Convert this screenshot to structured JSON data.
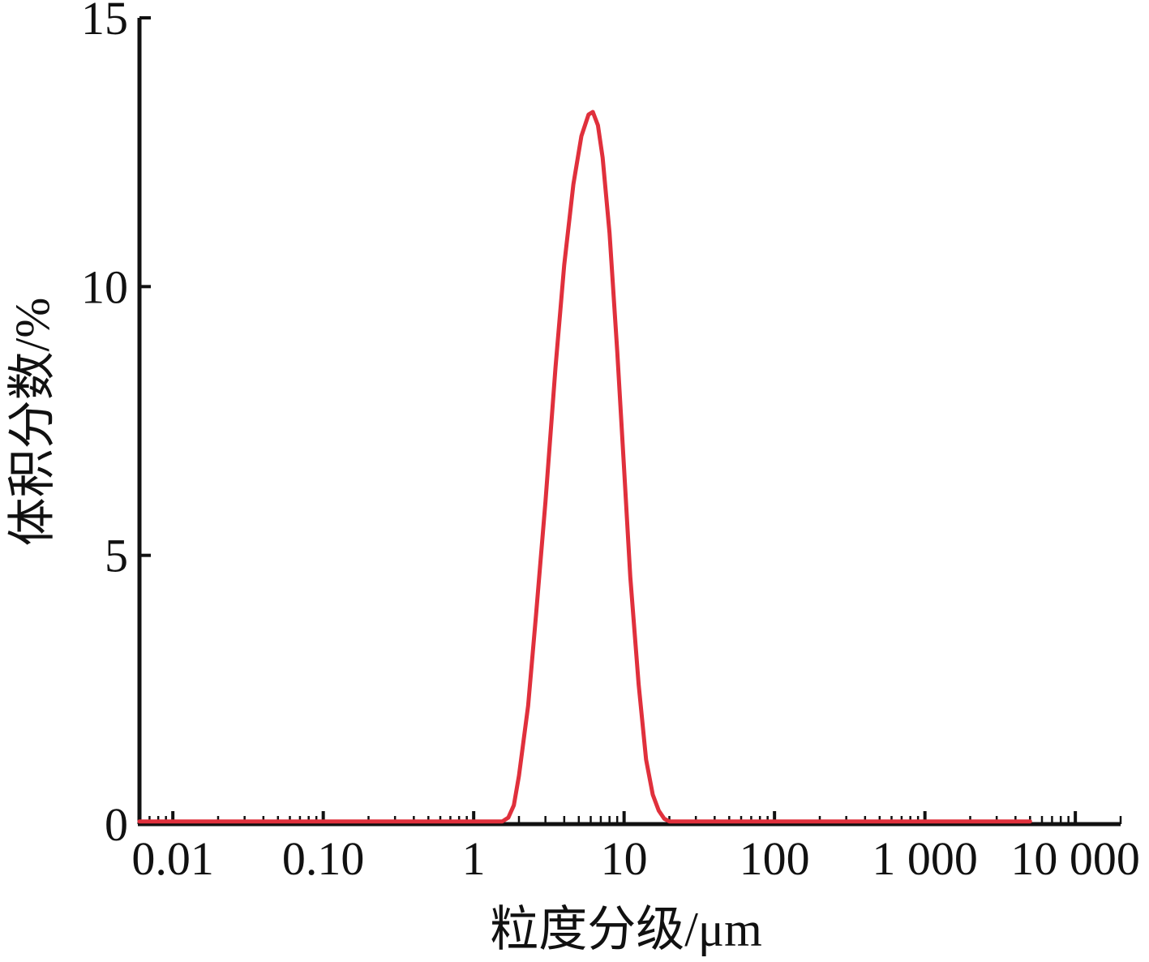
{
  "chart_data": {
    "type": "line",
    "xlabel": "粒度分级/μm",
    "ylabel": "体积分数/%",
    "x_scale": "log",
    "xlim": [
      0.006,
      20000
    ],
    "ylim": [
      0,
      15
    ],
    "x_ticks": [
      {
        "value": 0.01,
        "label": "0.01"
      },
      {
        "value": 0.1,
        "label": "0.10"
      },
      {
        "value": 1,
        "label": "1"
      },
      {
        "value": 10,
        "label": "10"
      },
      {
        "value": 100,
        "label": "100"
      },
      {
        "value": 1000,
        "label": "1 000"
      },
      {
        "value": 10000,
        "label": "10 000"
      }
    ],
    "y_ticks": [
      {
        "value": 0,
        "label": "0"
      },
      {
        "value": 5,
        "label": "5"
      },
      {
        "value": 10,
        "label": "10"
      },
      {
        "value": 15,
        "label": "15"
      }
    ],
    "grid": false,
    "series": [
      {
        "color": "#e0303c",
        "points": [
          [
            0.006,
            0.05
          ],
          [
            0.1,
            0.05
          ],
          [
            1,
            0.05
          ],
          [
            1.55,
            0.05
          ],
          [
            1.7,
            0.12
          ],
          [
            1.85,
            0.35
          ],
          [
            2.0,
            0.9
          ],
          [
            2.3,
            2.2
          ],
          [
            2.6,
            3.9
          ],
          [
            3.0,
            6.0
          ],
          [
            3.5,
            8.5
          ],
          [
            4.0,
            10.4
          ],
          [
            4.6,
            11.9
          ],
          [
            5.2,
            12.8
          ],
          [
            5.8,
            13.2
          ],
          [
            6.2,
            13.25
          ],
          [
            6.7,
            13.0
          ],
          [
            7.2,
            12.4
          ],
          [
            8.0,
            11.0
          ],
          [
            9.0,
            8.8
          ],
          [
            10.0,
            6.6
          ],
          [
            11.0,
            4.6
          ],
          [
            12.5,
            2.6
          ],
          [
            14.0,
            1.2
          ],
          [
            15.5,
            0.55
          ],
          [
            17.0,
            0.25
          ],
          [
            18.5,
            0.1
          ],
          [
            20.0,
            0.05
          ],
          [
            100,
            0.05
          ],
          [
            1000,
            0.05
          ],
          [
            5000,
            0.05
          ]
        ]
      }
    ],
    "colors": {
      "axis": "#111111",
      "line": "#e0303c"
    }
  }
}
